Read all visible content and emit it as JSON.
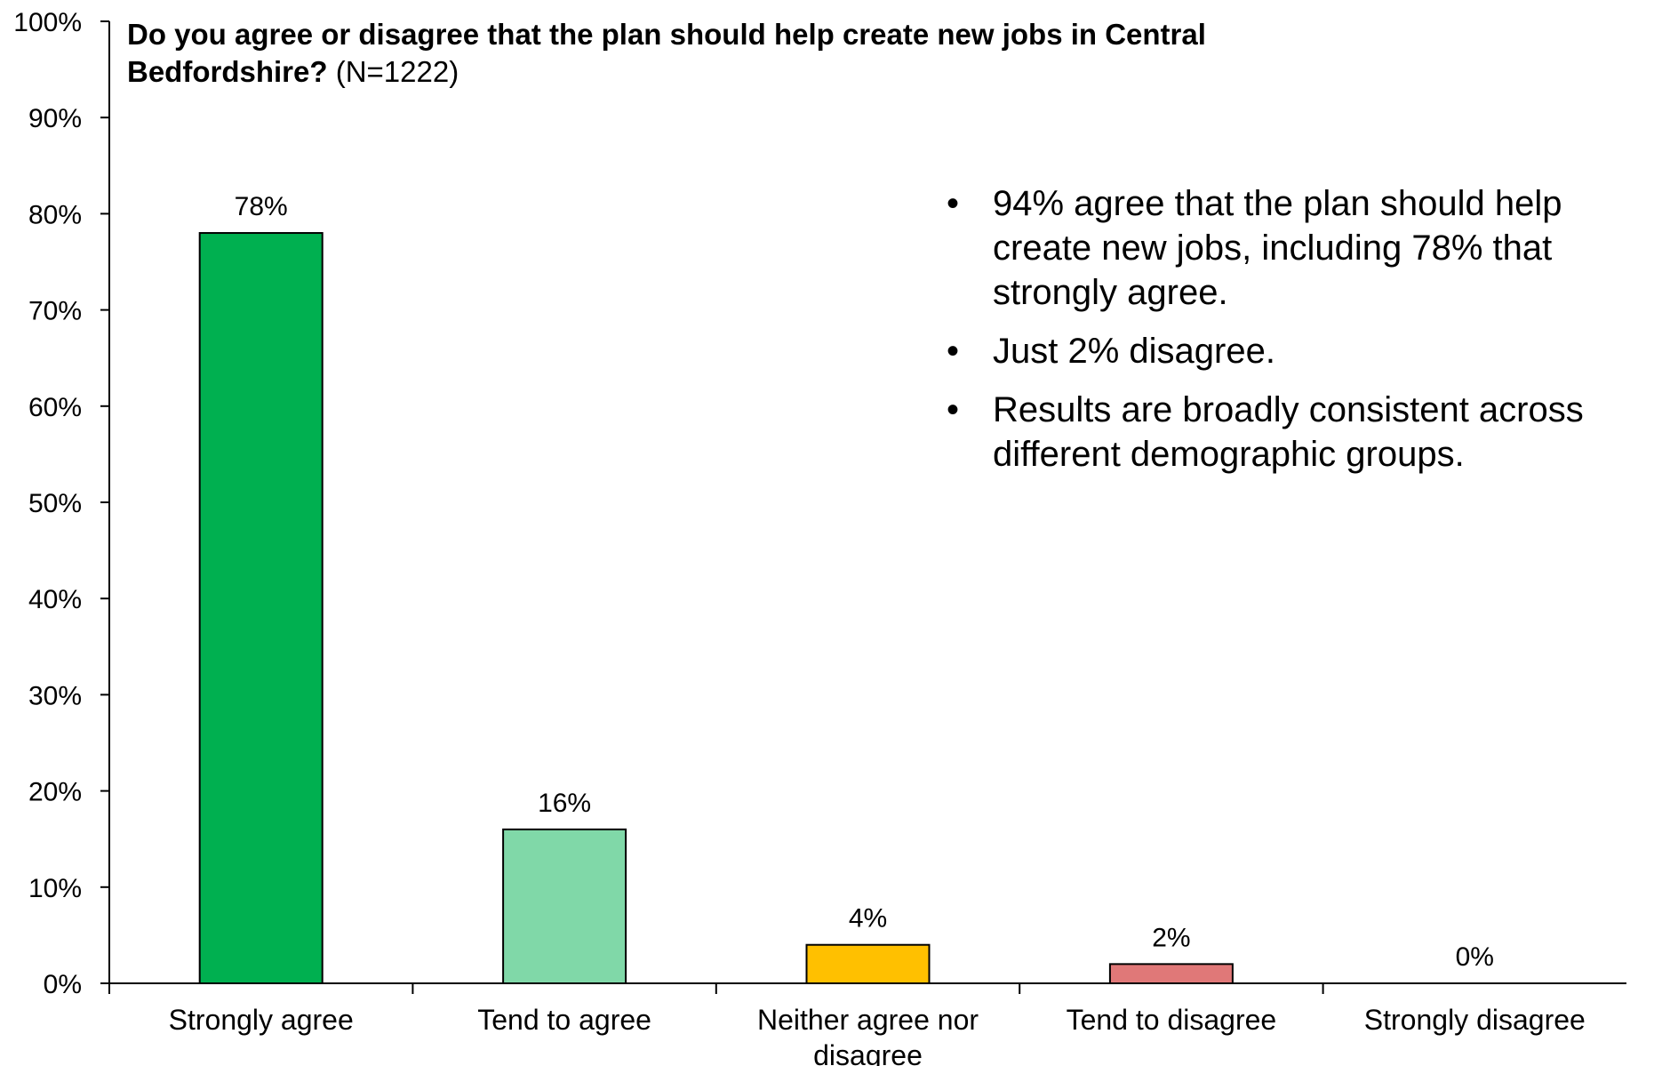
{
  "chart_data": {
    "type": "bar",
    "title": "Do you agree or disagree that the plan should help create new jobs in Central Bedfordshire?",
    "title_suffix": "(N=1222)",
    "categories": [
      "Strongly agree",
      "Tend to agree",
      "Neither agree nor disagree",
      "Tend to disagree",
      "Strongly disagree"
    ],
    "category_lines": [
      [
        "Strongly agree"
      ],
      [
        "Tend to agree"
      ],
      [
        "Neither agree nor",
        "disagree"
      ],
      [
        "Tend to disagree"
      ],
      [
        "Strongly disagree"
      ]
    ],
    "values": [
      78,
      16,
      4,
      2,
      0
    ],
    "data_labels": [
      "78%",
      "16%",
      "4%",
      "2%",
      "0%"
    ],
    "colors": [
      "#00b050",
      "#80d8a8",
      "#ffc000",
      "#e07878",
      "#bfbfbf"
    ],
    "ylim": [
      0,
      100
    ],
    "yticks": [
      0,
      10,
      20,
      30,
      40,
      50,
      60,
      70,
      80,
      90,
      100
    ],
    "ytick_labels": [
      "0%",
      "10%",
      "20%",
      "30%",
      "40%",
      "50%",
      "60%",
      "70%",
      "80%",
      "90%",
      "100%"
    ],
    "xlabel": "",
    "ylabel": "",
    "grid": false,
    "legend": "none"
  },
  "notes": {
    "bullet_symbol": "•",
    "items": [
      "94% agree that the plan should help create new jobs, including 78% that strongly agree.",
      "Just 2% disagree.",
      "Results are broadly consistent across different demographic groups."
    ]
  }
}
